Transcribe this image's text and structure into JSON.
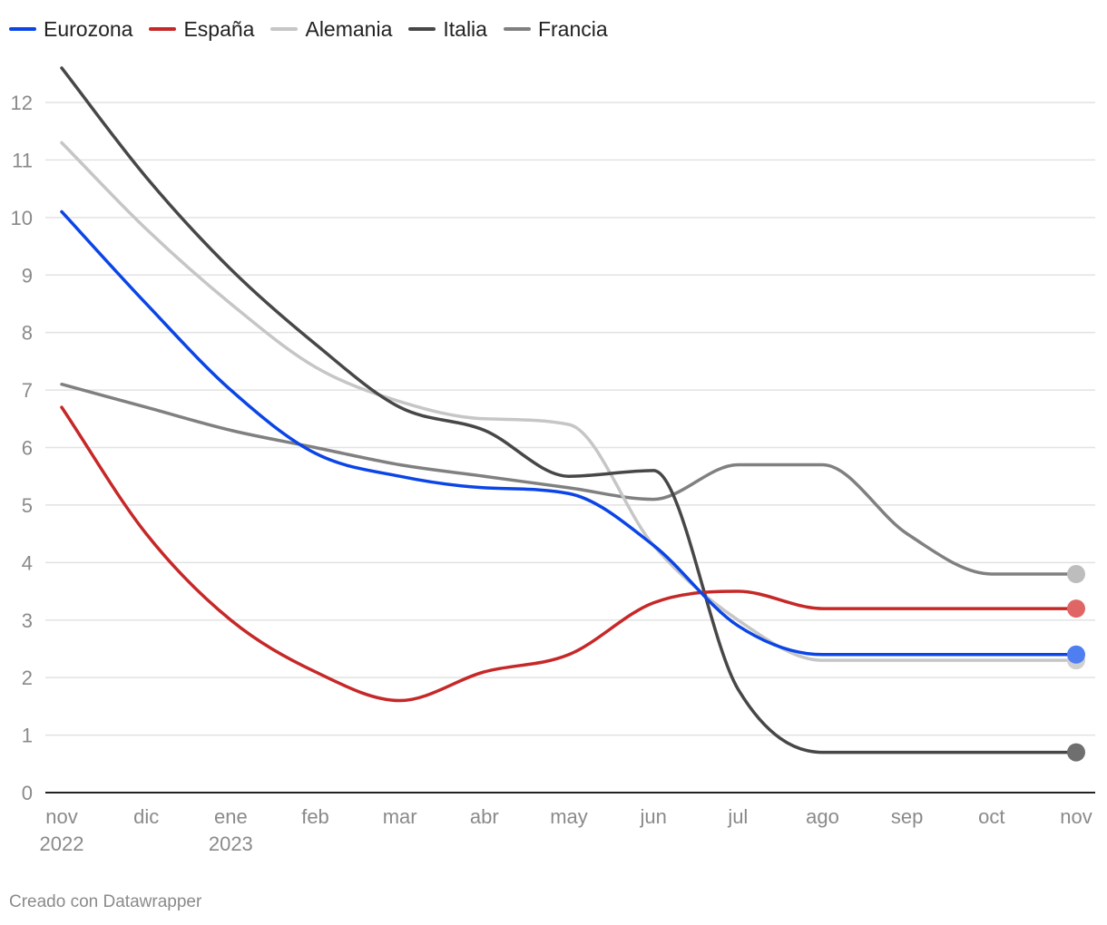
{
  "chart_data": {
    "type": "line",
    "title": "",
    "xlabel": "",
    "ylabel": "",
    "ylim": [
      0,
      12
    ],
    "y_ticks": [
      0,
      1,
      2,
      3,
      4,
      5,
      6,
      7,
      8,
      9,
      10,
      11,
      12
    ],
    "categories": [
      "nov 2022",
      "dic",
      "ene 2023",
      "feb",
      "mar",
      "abr",
      "may",
      "jun",
      "jul",
      "ago",
      "sep",
      "oct",
      "nov"
    ],
    "x_ticks": [
      {
        "line1": "nov",
        "line2": "2022"
      },
      {
        "line1": "dic",
        "line2": ""
      },
      {
        "line1": "ene",
        "line2": "2023"
      },
      {
        "line1": "feb",
        "line2": ""
      },
      {
        "line1": "mar",
        "line2": ""
      },
      {
        "line1": "abr",
        "line2": ""
      },
      {
        "line1": "may",
        "line2": ""
      },
      {
        "line1": "jun",
        "line2": ""
      },
      {
        "line1": "jul",
        "line2": ""
      },
      {
        "line1": "ago",
        "line2": ""
      },
      {
        "line1": "sep",
        "line2": ""
      },
      {
        "line1": "oct",
        "line2": ""
      },
      {
        "line1": "nov",
        "line2": ""
      }
    ],
    "series": [
      {
        "name": "Francia",
        "color": "#808080",
        "dot_color": "#bdbdbd",
        "values": [
          7.1,
          6.7,
          6.3,
          6.0,
          5.7,
          5.5,
          5.3,
          5.1,
          5.7,
          5.7,
          4.5,
          3.8,
          3.8
        ]
      },
      {
        "name": "Alemania",
        "color": "#c6c6c6",
        "dot_color": "#d0d0d0",
        "values": [
          11.3,
          9.8,
          8.5,
          7.4,
          6.8,
          6.5,
          6.4,
          4.3,
          3.0,
          2.3,
          2.3,
          2.3,
          2.3
        ]
      },
      {
        "name": "Italia",
        "color": "#474747",
        "dot_color": "#6f6f6f",
        "values": [
          12.6,
          10.7,
          9.1,
          7.8,
          6.7,
          6.3,
          5.5,
          5.6,
          1.8,
          0.7,
          0.7,
          0.7,
          0.7
        ]
      },
      {
        "name": "España",
        "color": "#c62828",
        "dot_color": "#e06666",
        "values": [
          6.7,
          4.5,
          3.0,
          2.1,
          1.6,
          2.1,
          2.4,
          3.3,
          3.5,
          3.2,
          3.2,
          3.2,
          3.2
        ]
      },
      {
        "name": "Eurozona",
        "color": "#0b45e6",
        "dot_color": "#4f7ef0",
        "values": [
          10.1,
          8.5,
          7.0,
          5.9,
          5.5,
          5.3,
          5.2,
          4.3,
          2.9,
          2.4,
          2.4,
          2.4,
          2.4
        ]
      }
    ],
    "legend": {
      "position": "top-left",
      "items": [
        {
          "name": "Eurozona",
          "color": "#0b45e6"
        },
        {
          "name": "España",
          "color": "#c62828"
        },
        {
          "name": "Alemania",
          "color": "#c6c6c6"
        },
        {
          "name": "Italia",
          "color": "#474747"
        },
        {
          "name": "Francia",
          "color": "#808080"
        }
      ]
    },
    "grid": true
  },
  "credit": "Creado con Datawrapper"
}
